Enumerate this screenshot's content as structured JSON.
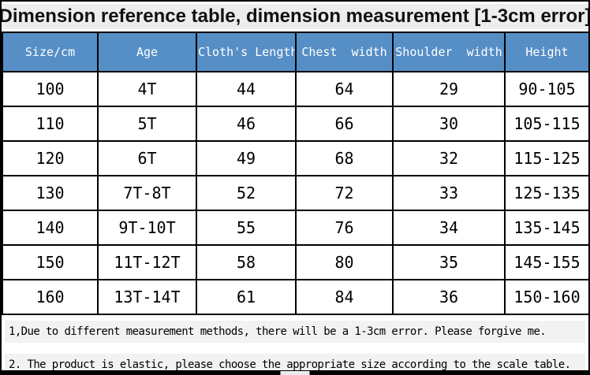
{
  "title": "Dimension reference table, dimension measurement [1-3cm error]",
  "colors": {
    "header_bg": "#568ec6",
    "header_text": "#ffffff",
    "grid": "#000000",
    "title_band_bg": "#ededed",
    "note_band_bg": "#f2f2f2",
    "body_text": "#000000"
  },
  "table": {
    "headers": [
      "Size/cm",
      "Age",
      "Cloth's Length",
      "Chest  width",
      "Shoulder  width",
      "Height"
    ],
    "rows": [
      [
        "100",
        "4T",
        "44",
        "64",
        "29",
        "90-105"
      ],
      [
        "110",
        "5T",
        "46",
        "66",
        "30",
        "105-115"
      ],
      [
        "120",
        "6T",
        "49",
        "68",
        "32",
        "115-125"
      ],
      [
        "130",
        "7T-8T",
        "52",
        "72",
        "33",
        "125-135"
      ],
      [
        "140",
        "9T-10T",
        "55",
        "76",
        "34",
        "135-145"
      ],
      [
        "150",
        "11T-12T",
        "58",
        "80",
        "35",
        "145-155"
      ],
      [
        "160",
        "13T-14T",
        "61",
        "84",
        "36",
        "150-160"
      ]
    ]
  },
  "notes": [
    "1,Due to different measurement methods, there will be a 1-3cm error. Please forgive me.",
    "2. The product is elastic, please choose the appropriate size according to the scale table."
  ]
}
